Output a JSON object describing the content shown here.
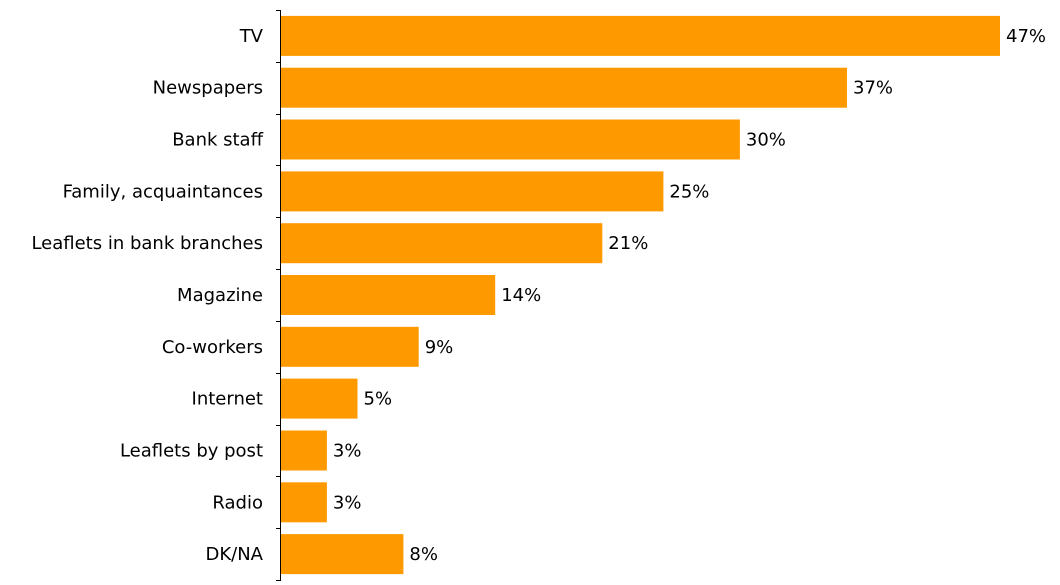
{
  "chart_data": {
    "type": "bar",
    "orientation": "horizontal",
    "categories": [
      "TV",
      "Newspapers",
      "Bank staff",
      "Family, acquaintances",
      "Leaflets in bank branches",
      "Magazine",
      "Co-workers",
      "Internet",
      "Leaflets by post",
      "Radio",
      "DK/NA"
    ],
    "values": [
      47,
      37,
      30,
      25,
      21,
      14,
      9,
      5,
      3,
      3,
      8
    ],
    "value_labels": [
      "47%",
      "37%",
      "30%",
      "25%",
      "21%",
      "14%",
      "9%",
      "5%",
      "3%",
      "3%",
      "8%"
    ],
    "unit": "%",
    "xlim": [
      0,
      47
    ],
    "grid": false,
    "legend": "none",
    "bar_color": "#FF9900",
    "title": "",
    "xlabel": "",
    "ylabel": ""
  }
}
